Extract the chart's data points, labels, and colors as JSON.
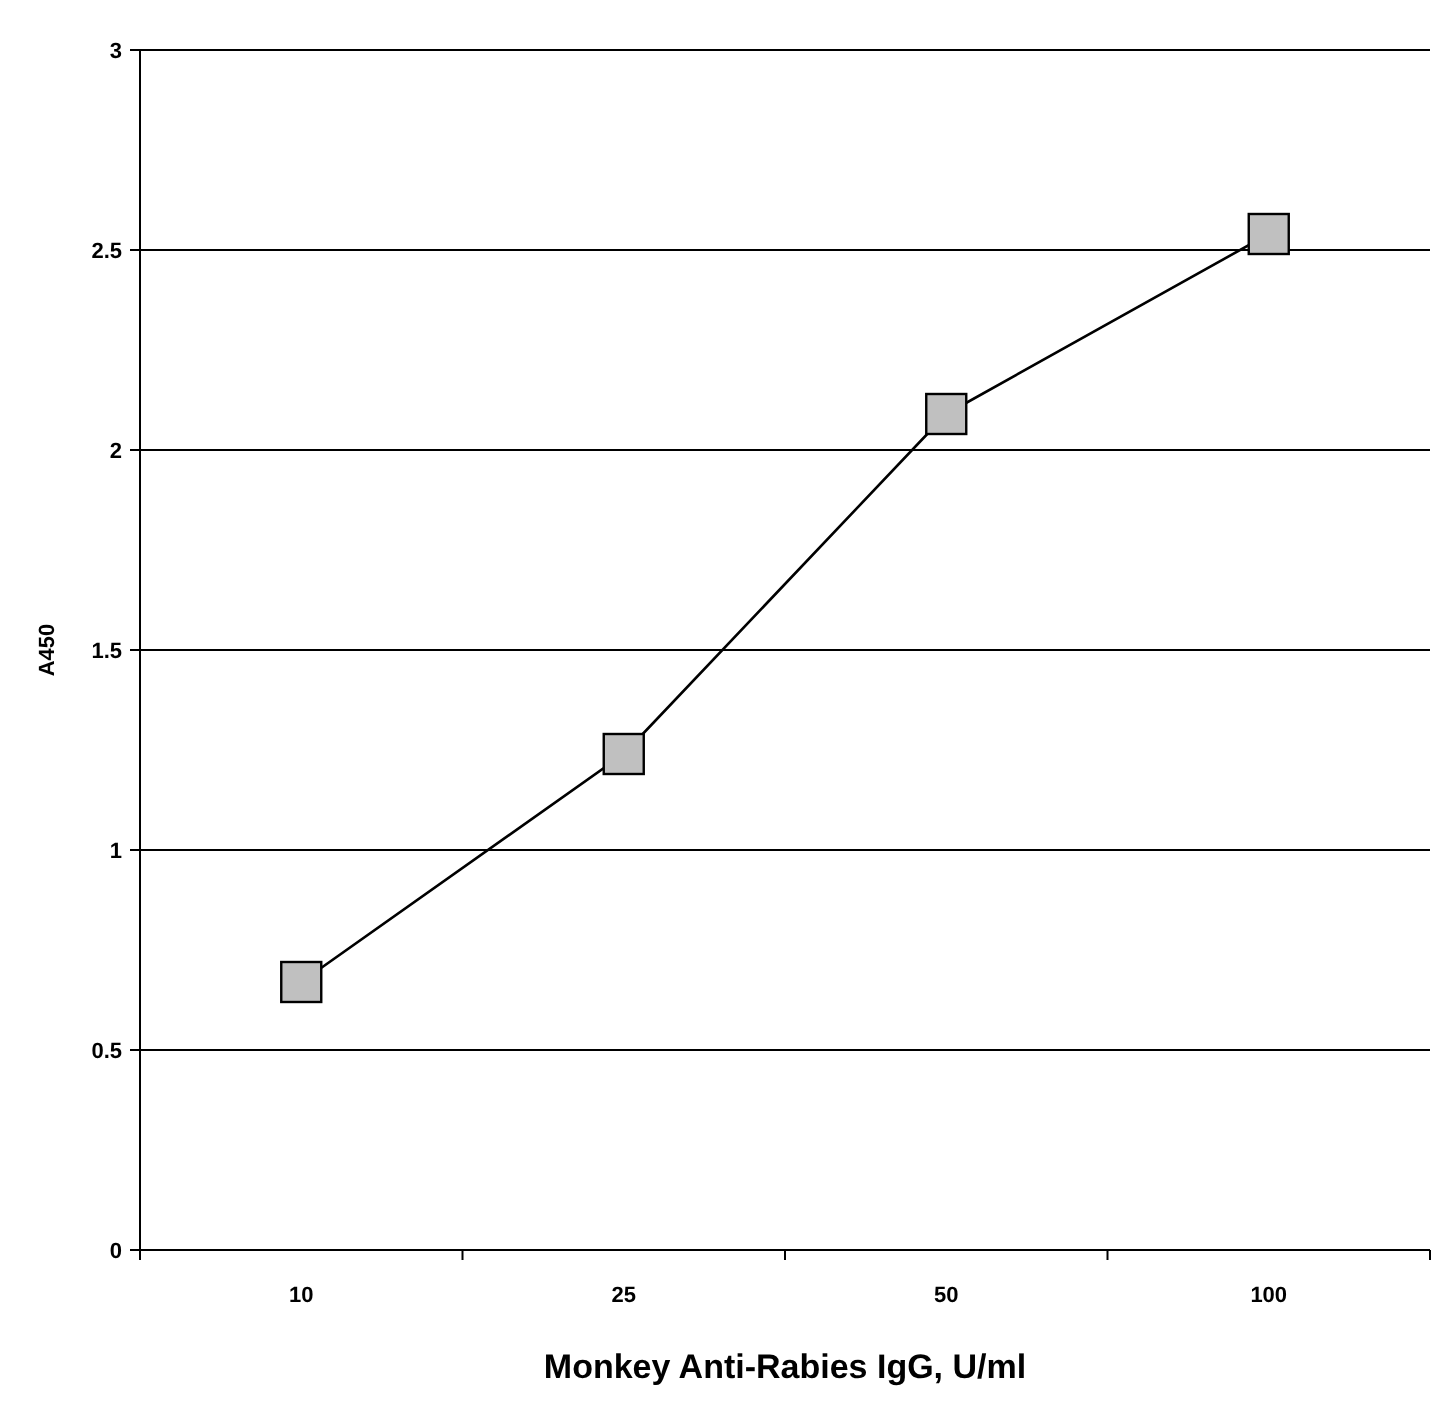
{
  "chart_data": {
    "type": "line",
    "xlabel": "Monkey Anti-Rabies IgG, U/ml",
    "ylabel": "A450",
    "categories": [
      "10",
      "25",
      "50",
      "100"
    ],
    "series": [
      {
        "color": "#000000",
        "values": [
          0.67,
          1.24,
          2.09,
          2.54
        ]
      }
    ],
    "ylim": [
      0,
      3
    ],
    "yticks": [
      0,
      0.5,
      1,
      1.5,
      2,
      2.5,
      3
    ],
    "grid": "y",
    "marker": "square",
    "line_style": "solid"
  }
}
